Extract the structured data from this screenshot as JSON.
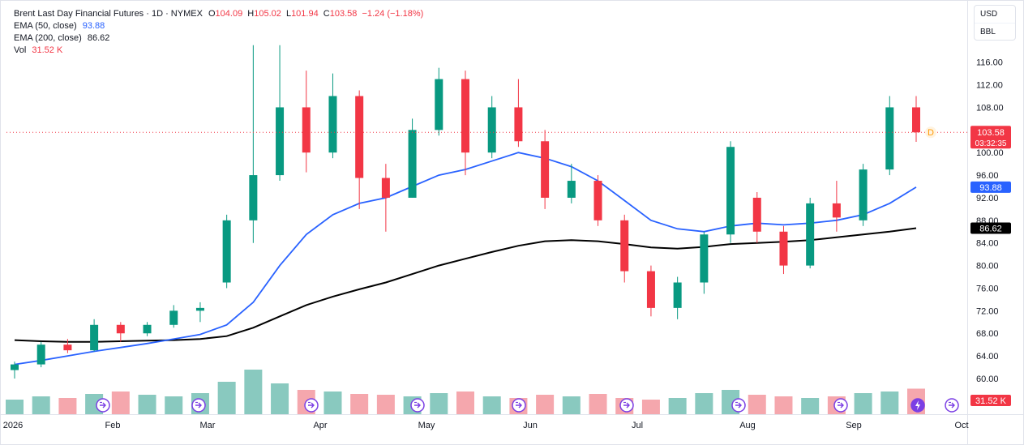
{
  "legend": {
    "title": "Brent Last Day Financial Futures · 1D · NYMEX",
    "open_label": "O",
    "open": "104.09",
    "high_label": "H",
    "high": "105.02",
    "low_label": "L",
    "low": "101.94",
    "close_label": "C",
    "close": "103.58",
    "change": "−1.24 (−1.18%)",
    "ema50_label": "EMA (50, close)",
    "ema50_value": "93.88",
    "ema200_label": "EMA (200, close)",
    "ema200_value": "86.62",
    "vol_label": "Vol",
    "vol_value": "31.52 K"
  },
  "units": {
    "currency": "USD",
    "unit": "BBL"
  },
  "price_labels": {
    "last_price": "103.58",
    "countdown": "03:32:35",
    "ema50": "93.88",
    "ema200": "86.62",
    "volume": "31.52 K",
    "dividend_marker": "D"
  },
  "colors": {
    "up": "#089981",
    "down": "#f23645",
    "vol_up": "#89c9bf",
    "vol_down": "#f5a7ad",
    "ema50": "#2962ff",
    "ema200": "#000000",
    "event": "#7b3fe4",
    "dividend": "#ff9800"
  },
  "chart_data": {
    "type": "candlestick",
    "title": "Brent Last Day Financial Futures · 1D · NYMEX",
    "y_axis": {
      "ticks": [
        60,
        64,
        68,
        72,
        76,
        80,
        84,
        88,
        92,
        96,
        100,
        104,
        108,
        112,
        116
      ],
      "range": [
        56.6,
        121
      ],
      "side": "right"
    },
    "x_axis": {
      "ticks": [
        "2026",
        "Feb",
        "Mar",
        "Apr",
        "May",
        "Jun",
        "Jul",
        "Aug",
        "Sep",
        "Oct"
      ]
    },
    "ohlc_weekly_approx": [
      {
        "week": "Jan-1",
        "open": 61.5,
        "high": 63.0,
        "low": 60.0,
        "close": 62.5
      },
      {
        "week": "Jan-2",
        "open": 62.5,
        "high": 66.5,
        "low": 62.0,
        "close": 66.0
      },
      {
        "week": "Jan-3",
        "open": 66.0,
        "high": 67.0,
        "low": 64.5,
        "close": 65.0
      },
      {
        "week": "Jan-4",
        "open": 65.0,
        "high": 70.5,
        "low": 64.8,
        "close": 69.5
      },
      {
        "week": "Feb-1",
        "open": 69.5,
        "high": 70.0,
        "low": 66.5,
        "close": 68.0
      },
      {
        "week": "Feb-2",
        "open": 68.0,
        "high": 70.0,
        "low": 67.5,
        "close": 69.5
      },
      {
        "week": "Feb-3",
        "open": 69.5,
        "high": 73.0,
        "low": 69.0,
        "close": 72.0
      },
      {
        "week": "Feb-4",
        "open": 72.0,
        "high": 73.5,
        "low": 70.0,
        "close": 72.5
      },
      {
        "week": "Mar-1",
        "open": 77.0,
        "high": 89.0,
        "low": 76.0,
        "close": 88.0
      },
      {
        "week": "Mar-2",
        "open": 88.0,
        "high": 119.0,
        "low": 84.0,
        "close": 96.0
      },
      {
        "week": "Mar-3",
        "open": 96.0,
        "high": 119.0,
        "low": 95.0,
        "close": 108.0
      },
      {
        "week": "Mar-4",
        "open": 108.0,
        "high": 114.5,
        "low": 96.5,
        "close": 100.0
      },
      {
        "week": "Apr-1",
        "open": 100.0,
        "high": 114.0,
        "low": 99.0,
        "close": 110.0
      },
      {
        "week": "Apr-2",
        "open": 110.0,
        "high": 111.0,
        "low": 90.0,
        "close": 95.5
      },
      {
        "week": "Apr-3",
        "open": 95.5,
        "high": 98.0,
        "low": 86.0,
        "close": 92.0
      },
      {
        "week": "Apr-4",
        "open": 92.0,
        "high": 106.0,
        "low": 92.0,
        "close": 104.0
      },
      {
        "week": "May-1",
        "open": 104.0,
        "high": 115.0,
        "low": 103.0,
        "close": 113.0
      },
      {
        "week": "May-2",
        "open": 113.0,
        "high": 114.5,
        "low": 96.0,
        "close": 100.0
      },
      {
        "week": "May-3",
        "open": 100.0,
        "high": 110.0,
        "low": 99.0,
        "close": 108.0
      },
      {
        "week": "May-4",
        "open": 108.0,
        "high": 113.0,
        "low": 101.0,
        "close": 102.0
      },
      {
        "week": "Jun-1",
        "open": 102.0,
        "high": 104.0,
        "low": 90.0,
        "close": 92.0
      },
      {
        "week": "Jun-2",
        "open": 92.0,
        "high": 98.0,
        "low": 91.0,
        "close": 95.0
      },
      {
        "week": "Jun-3",
        "open": 95.0,
        "high": 96.0,
        "low": 87.0,
        "close": 88.0
      },
      {
        "week": "Jun-4",
        "open": 88.0,
        "high": 89.0,
        "low": 77.0,
        "close": 79.0
      },
      {
        "week": "Jul-1",
        "open": 79.0,
        "high": 80.0,
        "low": 71.0,
        "close": 72.5
      },
      {
        "week": "Jul-2",
        "open": 72.5,
        "high": 78.0,
        "low": 70.5,
        "close": 77.0
      },
      {
        "week": "Jul-3",
        "open": 77.0,
        "high": 86.0,
        "low": 75.0,
        "close": 85.5
      },
      {
        "week": "Jul-4",
        "open": 85.5,
        "high": 102.0,
        "low": 84.0,
        "close": 101.0
      },
      {
        "week": "Aug-1",
        "open": 92.0,
        "high": 93.0,
        "low": 84.0,
        "close": 86.0
      },
      {
        "week": "Aug-2",
        "open": 86.0,
        "high": 87.0,
        "low": 78.5,
        "close": 80.0
      },
      {
        "week": "Aug-3",
        "open": 80.0,
        "high": 92.0,
        "low": 79.5,
        "close": 91.0
      },
      {
        "week": "Aug-4",
        "open": 91.0,
        "high": 95.0,
        "low": 86.0,
        "close": 88.5
      },
      {
        "week": "Sep-1",
        "open": 88.0,
        "high": 98.0,
        "low": 87.0,
        "close": 97.0
      },
      {
        "week": "Sep-2",
        "open": 97.0,
        "high": 110.0,
        "low": 96.0,
        "close": 108.0
      },
      {
        "week": "Sep-3",
        "open": 108.0,
        "high": 110.0,
        "low": 101.9,
        "close": 103.58
      }
    ],
    "ema50_weekly_approx": [
      62.5,
      63.2,
      64.0,
      64.8,
      65.5,
      66.2,
      67.0,
      67.8,
      69.5,
      73.5,
      80.0,
      85.5,
      89.0,
      91.0,
      92.0,
      94.0,
      96.0,
      97.0,
      98.5,
      100.0,
      99.0,
      97.5,
      95.0,
      91.5,
      88.0,
      86.5,
      86.0,
      87.0,
      87.5,
      87.2,
      87.5,
      88.0,
      89.0,
      91.0,
      93.88
    ],
    "ema200_weekly_approx": [
      66.8,
      66.6,
      66.5,
      66.5,
      66.6,
      66.7,
      66.8,
      67.0,
      67.5,
      69.0,
      71.0,
      73.0,
      74.5,
      75.8,
      77.0,
      78.5,
      80.0,
      81.2,
      82.4,
      83.5,
      84.3,
      84.5,
      84.3,
      83.8,
      83.2,
      83.0,
      83.3,
      83.8,
      84.0,
      84.2,
      84.5,
      85.0,
      85.5,
      86.0,
      86.62
    ],
    "volume_weekly_k": [
      18,
      22,
      20,
      25,
      28,
      24,
      22,
      26,
      40,
      55,
      38,
      30,
      28,
      25,
      24,
      22,
      26,
      28,
      22,
      20,
      24,
      22,
      25,
      20,
      18,
      20,
      26,
      30,
      24,
      22,
      20,
      22,
      26,
      28,
      31.52
    ]
  }
}
